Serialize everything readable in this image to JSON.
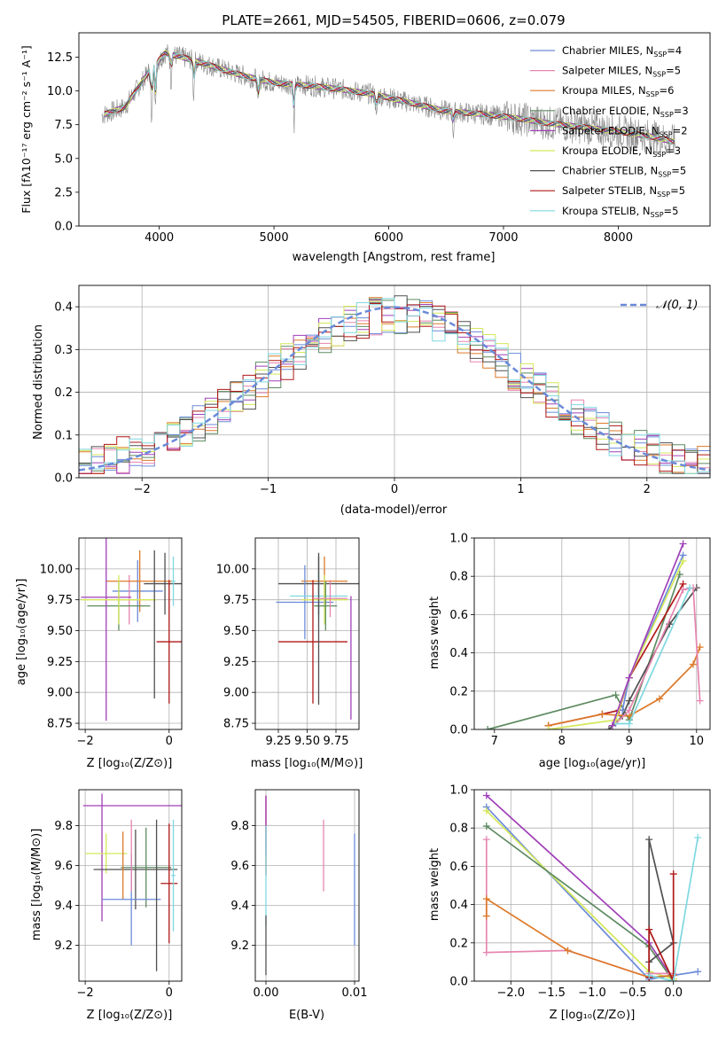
{
  "figure": {
    "title": "PLATE=2661, MJD=54505, FIBERID=0606, z=0.079"
  },
  "chart_data": [
    {
      "id": "spectrum",
      "type": "line",
      "xlabel": "wavelength [Angstrom, rest frame]",
      "ylabel": "Flux [fλ10⁻¹⁷ erg cm⁻² s⁻¹ A⁻¹]",
      "xlim": [
        3300,
        8800
      ],
      "ylim": [
        0,
        14.3
      ],
      "xticks": [
        4000,
        5000,
        6000,
        7000,
        8000
      ],
      "yticks": [
        0.0,
        2.5,
        5.0,
        7.5,
        10.0,
        12.5
      ],
      "grid": false,
      "legend_position": "right",
      "continuum": {
        "x": [
          3500,
          3700,
          3900,
          4050,
          4200,
          4400,
          4700,
          5000,
          5300,
          5600,
          5900,
          6200,
          6500,
          6800,
          7100,
          7400,
          7700,
          8000,
          8300,
          8500
        ],
        "y": [
          8.2,
          8.8,
          11.3,
          12.8,
          12.5,
          12.0,
          11.2,
          10.6,
          10.4,
          10.1,
          9.7,
          9.1,
          8.5,
          8.3,
          8.0,
          7.6,
          7.3,
          7.0,
          6.6,
          6.2
        ]
      },
      "absorption_features": [
        {
          "x": 3934,
          "depth": 4.5
        },
        {
          "x": 3968,
          "depth": 3.5
        },
        {
          "x": 4102,
          "depth": 2.0
        },
        {
          "x": 4300,
          "depth": 2.5
        },
        {
          "x": 4861,
          "depth": 2.0
        },
        {
          "x": 5175,
          "depth": 3.0
        },
        {
          "x": 5893,
          "depth": 2.0
        },
        {
          "x": 6563,
          "depth": 1.5
        }
      ],
      "series": [
        {
          "name": "Chabrier MILES, N_SSP=4",
          "label_main": "Chabrier MILES, N",
          "n": "4",
          "color": "#6a8ad8"
        },
        {
          "name": "Salpeter MILES, N_SSP=5",
          "label_main": "Salpeter MILES, N",
          "n": "5",
          "color": "#e685b0"
        },
        {
          "name": "Kroupa MILES, N_SSP=6",
          "label_main": "Kroupa MILES, N",
          "n": "6",
          "color": "#dd7a2a"
        },
        {
          "name": "Chabrier ELODIE, N_SSP=3",
          "label_main": "Chabrier ELODIE, N",
          "n": "3",
          "color": "#5d8a60"
        },
        {
          "name": "Salpeter ELODIE, N_SSP=2",
          "label_main": "Salpeter ELODIE, N",
          "n": "2",
          "color": "#a040b8"
        },
        {
          "name": "Kroupa ELODIE, N_SSP=3",
          "label_main": "Kroupa ELODIE, N",
          "n": "3",
          "color": "#d4e85a"
        },
        {
          "name": "Chabrier STELIB, N_SSP=5",
          "label_main": "Chabrier STELIB, N",
          "n": "5",
          "color": "#505050"
        },
        {
          "name": "Salpeter STELIB, N_SSP=5",
          "label_main": "Salpeter STELIB, N",
          "n": "5",
          "color": "#b01818"
        },
        {
          "name": "Kroupa STELIB, N_SSP=5",
          "label_main": "Kroupa STELIB, N",
          "n": "5",
          "color": "#7fd8e0"
        }
      ],
      "legend_sub": "SSP",
      "data_color": "#888888"
    },
    {
      "id": "residuals",
      "type": "histogram",
      "xlabel": "(data-model)/error",
      "ylabel": "Normed distribution",
      "xlim": [
        -2.5,
        2.5
      ],
      "ylim": [
        0,
        0.45
      ],
      "xticks": [
        -2,
        -1,
        0,
        1,
        2
      ],
      "yticks": [
        0.0,
        0.1,
        0.2,
        0.3,
        0.4
      ],
      "grid": true,
      "legend": "𝒩(0, 1)",
      "legend_position": "top-right",
      "bin_width": 0.1,
      "gauss_color": "#6a8ad8"
    },
    {
      "id": "age_vs_Z",
      "type": "errorbar",
      "xlabel": "Z [log₁₀(Z/Z⊙)]",
      "ylabel": "age  [log₁₀(age/yr)]",
      "xlim": [
        -2.15,
        0.3
      ],
      "ylim": [
        8.7,
        10.25
      ],
      "xticks": [
        -2,
        0
      ],
      "yticks": [
        8.75,
        9.0,
        9.25,
        9.5,
        9.75,
        10.0
      ],
      "grid": true,
      "points": [
        {
          "c": "#6a8ad8",
          "x": -0.75,
          "xe": 0.6,
          "y": 9.82,
          "ye": 0.25
        },
        {
          "c": "#e685b0",
          "x": -0.95,
          "xe": 0.6,
          "y": 9.75,
          "ye": 0.2
        },
        {
          "c": "#dd7a2a",
          "x": -0.7,
          "xe": 0.8,
          "y": 9.9,
          "ye": 0.25
        },
        {
          "c": "#5d8a60",
          "x": -1.2,
          "xe": 0.75,
          "y": 9.7,
          "ye": 0.2
        },
        {
          "c": "#a040b8",
          "x": -1.5,
          "xe": 0.6,
          "y": 9.77,
          "ye": 1.0
        },
        {
          "c": "#d4e85a",
          "x": -1.2,
          "xe": 0.9,
          "y": 9.75,
          "ye": 0.2
        },
        {
          "c": "#505050",
          "x": -0.1,
          "xe": 0.5,
          "y": 9.88,
          "ye": 0.25
        },
        {
          "c": "#505050",
          "x": -0.35,
          "xe": 0.0,
          "y": 9.55,
          "ye": 0.6
        },
        {
          "c": "#b01818",
          "x": 0.0,
          "xe": 0.3,
          "y": 9.41,
          "ye": 0.5
        },
        {
          "c": "#7fd8e0",
          "x": 0.1,
          "xe": 0.05,
          "y": 9.9,
          "ye": 0.2
        }
      ]
    },
    {
      "id": "age_vs_mass",
      "type": "errorbar",
      "xlabel": "mass [log₁₀(M/M⊙)]",
      "ylabel": "",
      "xlim": [
        9.05,
        9.95
      ],
      "ylim": [
        8.7,
        10.25
      ],
      "xticks": [
        9.25,
        9.5,
        9.75
      ],
      "yticks": [
        8.75,
        9.0,
        9.25,
        9.5,
        9.75,
        10.0
      ],
      "grid": true,
      "points": [
        {
          "c": "#505050",
          "x": 9.6,
          "xe": 0.35,
          "y": 9.88,
          "ye": 0.25
        },
        {
          "c": "#dd7a2a",
          "x": 9.65,
          "xe": 0.2,
          "y": 9.9,
          "ye": 0.2
        },
        {
          "c": "#6a8ad8",
          "x": 9.48,
          "xe": 0.25,
          "y": 9.73,
          "ye": 0.3
        },
        {
          "c": "#7fd8e0",
          "x": 9.6,
          "xe": 0.25,
          "y": 9.78,
          "ye": 0.2
        },
        {
          "c": "#d4e85a",
          "x": 9.65,
          "xe": 0.2,
          "y": 9.75,
          "ye": 0.2
        },
        {
          "c": "#5d8a60",
          "x": 9.66,
          "xe": 0.1,
          "y": 9.7,
          "ye": 0.2
        },
        {
          "c": "#b01818",
          "x": 9.55,
          "xe": 0.3,
          "y": 9.41,
          "ye": 0.5
        },
        {
          "c": "#505050",
          "x": 9.6,
          "xe": 0.0,
          "y": 9.5,
          "ye": 0.6
        },
        {
          "c": "#a040b8",
          "x": 9.88,
          "xe": 0.0,
          "y": 9.28,
          "ye": 0.5
        },
        {
          "c": "#e685b0",
          "x": 9.7,
          "xe": 0.15,
          "y": 9.76,
          "ye": 0.15
        }
      ]
    },
    {
      "id": "weight_vs_age",
      "type": "line",
      "xlabel": "age  [log₁₀(age/yr)]",
      "ylabel": "mass weight",
      "xlim": [
        6.7,
        10.2
      ],
      "ylim": [
        0,
        1.0
      ],
      "xticks": [
        7,
        8,
        9,
        10
      ],
      "yticks": [
        0.0,
        0.2,
        0.4,
        0.6,
        0.8,
        1.0
      ],
      "grid": true,
      "series": [
        {
          "c": "#5d8a60",
          "x": [
            6.9,
            8.8,
            9.0,
            9.75
          ],
          "y": [
            0.0,
            0.18,
            0.05,
            0.81
          ]
        },
        {
          "c": "#b01818",
          "x": [
            7.8,
            8.6,
            8.85,
            9.0,
            9.8
          ],
          "y": [
            0.02,
            0.08,
            0.1,
            0.27,
            0.76
          ]
        },
        {
          "c": "#505050",
          "x": [
            8.7,
            8.9,
            9.0,
            9.6,
            10.0
          ],
          "y": [
            0.0,
            0.07,
            0.15,
            0.55,
            0.74
          ]
        },
        {
          "c": "#dd7a2a",
          "x": [
            7.8,
            8.6,
            9.0,
            9.45,
            9.95,
            10.05
          ],
          "y": [
            0.02,
            0.08,
            0.07,
            0.16,
            0.34,
            0.43
          ]
        },
        {
          "c": "#e685b0",
          "x": [
            8.8,
            9.0,
            9.8,
            9.95,
            10.05
          ],
          "y": [
            0.03,
            0.1,
            0.73,
            0.74,
            0.15
          ]
        },
        {
          "c": "#6a8ad8",
          "x": [
            8.9,
            9.0,
            9.8
          ],
          "y": [
            0.1,
            0.27,
            0.91
          ]
        },
        {
          "c": "#7fd8e0",
          "x": [
            8.8,
            9.0,
            9.9
          ],
          "y": [
            0.03,
            0.03,
            0.74
          ]
        },
        {
          "c": "#d4e85a",
          "x": [
            7.8,
            8.8,
            9.0,
            9.8
          ],
          "y": [
            0.0,
            0.05,
            0.27,
            0.88
          ]
        },
        {
          "c": "#a040b8",
          "x": [
            8.75,
            9.0,
            9.8
          ],
          "y": [
            0.02,
            0.27,
            0.97
          ]
        }
      ]
    },
    {
      "id": "mass_vs_Z",
      "type": "errorbar",
      "xlabel": "Z [log₁₀(Z/Z⊙)]",
      "ylabel": "mass [log₁₀(M/M⊙)]",
      "xlim": [
        -2.15,
        0.3
      ],
      "ylim": [
        9.02,
        9.98
      ],
      "xticks": [
        -2,
        0
      ],
      "yticks": [
        9.2,
        9.4,
        9.6,
        9.8
      ],
      "grid": true,
      "points": [
        {
          "c": "#a040b8",
          "x": -0.5,
          "xe": 1.55,
          "y": 9.9,
          "ye": 0.0
        },
        {
          "c": "#a040b8",
          "x": -1.6,
          "xe": 0.0,
          "y": 9.64,
          "ye": 0.32
        },
        {
          "c": "#d4e85a",
          "x": -1.5,
          "xe": 0.5,
          "y": 9.66,
          "ye": 0.1
        },
        {
          "c": "#505050",
          "x": -0.8,
          "xe": 1.0,
          "y": 9.58,
          "ye": 0.2
        },
        {
          "c": "#5d8a60",
          "x": -0.55,
          "xe": 0.6,
          "y": 9.59,
          "ye": 0.2
        },
        {
          "c": "#dd7a2a",
          "x": -1.1,
          "xe": 0.0,
          "y": 9.6,
          "ye": 0.17
        },
        {
          "c": "#6a8ad8",
          "x": -0.9,
          "xe": 0.7,
          "y": 9.43,
          "ye": 0.23
        },
        {
          "c": "#e685b0",
          "x": -0.9,
          "xe": 0.0,
          "y": 9.65,
          "ye": 0.18
        },
        {
          "c": "#505050",
          "x": -0.3,
          "xe": 0.0,
          "y": 9.45,
          "ye": 0.38
        },
        {
          "c": "#b01818",
          "x": 0.0,
          "xe": 0.2,
          "y": 9.51,
          "ye": 0.3
        },
        {
          "c": "#7fd8e0",
          "x": 0.1,
          "xe": 0.05,
          "y": 9.55,
          "ye": 0.28
        },
        {
          "c": "#dd7a2a",
          "x": -0.4,
          "xe": 0.0,
          "y": 9.6,
          "ye": 0.0
        }
      ]
    },
    {
      "id": "mass_vs_EBV",
      "type": "errorbar",
      "xlabel": "E(B-V)",
      "ylabel": "",
      "xlim": [
        -0.0012,
        0.0105
      ],
      "ylim": [
        9.02,
        9.98
      ],
      "xticks": [
        0.0,
        0.01
      ],
      "ytick_values": [
        9.2,
        9.4,
        9.6,
        9.8
      ],
      "grid": true,
      "points": [
        {
          "c": "#b01818",
          "x": 0.0,
          "xe": 0.0,
          "y": 9.75,
          "ye": 0.2
        },
        {
          "c": "#a040b8",
          "x": 0.0,
          "xe": 0.0,
          "y": 9.8,
          "ye": 0.15
        },
        {
          "c": "#7fd8e0",
          "x": 0.0,
          "xe": 0.0,
          "y": 9.55,
          "ye": 0.25
        },
        {
          "c": "#505050",
          "x": 0.0,
          "xe": 0.0,
          "y": 9.2,
          "ye": 0.15
        },
        {
          "c": "#e685b0",
          "x": 0.0065,
          "xe": 0.0,
          "y": 9.65,
          "ye": 0.18
        },
        {
          "c": "#6a8ad8",
          "x": 0.01,
          "xe": 0.0,
          "y": 9.48,
          "ye": 0.28
        }
      ]
    },
    {
      "id": "weight_vs_Z",
      "type": "line",
      "xlabel": "Z [log₁₀(Z/Z⊙)]",
      "ylabel": "mass weight",
      "xlim": [
        -2.45,
        0.45
      ],
      "ylim": [
        0,
        1.0
      ],
      "xticks": [
        -2.0,
        -1.5,
        -1.0,
        -0.5,
        0.0
      ],
      "yticks": [
        0.0,
        0.2,
        0.4,
        0.6,
        0.8,
        1.0
      ],
      "grid": true,
      "series": [
        {
          "c": "#a040b8",
          "x": [
            -2.3,
            -0.3,
            0.0
          ],
          "y": [
            0.97,
            0.2,
            0.01
          ]
        },
        {
          "c": "#6a8ad8",
          "x": [
            -2.3,
            -0.3,
            0.0,
            0.3
          ],
          "y": [
            0.91,
            0.01,
            0.03,
            0.05
          ]
        },
        {
          "c": "#d4e85a",
          "x": [
            -2.3,
            -0.3,
            0.0
          ],
          "y": [
            0.89,
            0.05,
            0.01
          ]
        },
        {
          "c": "#5d8a60",
          "x": [
            -2.3,
            -0.3,
            0.0
          ],
          "y": [
            0.81,
            0.18,
            0.0
          ]
        },
        {
          "c": "#e685b0",
          "x": [
            -2.3,
            -2.3,
            -1.3,
            -0.3,
            -0.3,
            0.0
          ],
          "y": [
            0.74,
            0.15,
            0.16,
            0.02,
            0.04,
            0.04
          ]
        },
        {
          "c": "#dd7a2a",
          "x": [
            -2.3,
            -2.3,
            -1.3,
            -0.3,
            0.0
          ],
          "y": [
            0.34,
            0.43,
            0.16,
            0.02,
            0.03
          ]
        },
        {
          "c": "#505050",
          "x": [
            -0.3,
            -0.3,
            0.0,
            -0.3
          ],
          "y": [
            0.02,
            0.74,
            0.2,
            0.1
          ]
        },
        {
          "c": "#b01818",
          "x": [
            -0.3,
            -0.3,
            0.0,
            0.0
          ],
          "y": [
            0.02,
            0.27,
            0.0,
            0.56
          ]
        },
        {
          "c": "#7fd8e0",
          "x": [
            -0.3,
            0.0,
            0.3
          ],
          "y": [
            0.03,
            0.0,
            0.75
          ]
        }
      ]
    }
  ]
}
